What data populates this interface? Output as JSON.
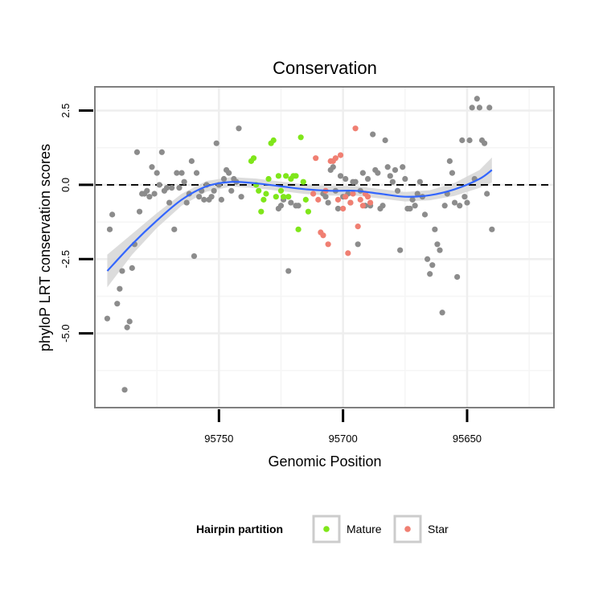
{
  "chart_data": {
    "type": "scatter",
    "title": "Conservation",
    "xlabel": "Genomic Position",
    "ylabel": "phyloP LRT conservation scores",
    "x_reversed": true,
    "xlim": [
      95800,
      95615
    ],
    "ylim": [
      -7.5,
      3.3
    ],
    "x_ticks": [
      95750,
      95700,
      95650
    ],
    "x_tick_labels": [
      "95750",
      "95700",
      "95650"
    ],
    "y_ticks": [
      2.5,
      0,
      -2.5,
      -5
    ],
    "y_tick_labels": [
      "2.5",
      "0.0",
      "-2.5",
      "-5.0"
    ],
    "grid": true,
    "reference_line": {
      "y": 0,
      "style": "dashed"
    },
    "legend": {
      "title": "Hairpin partition",
      "position": "bottom",
      "entries": [
        {
          "name": "Mature",
          "color": "#7fe61a"
        },
        {
          "name": "Star",
          "color": "#f07f72"
        }
      ]
    },
    "colors": {
      "other": "#8c8c8c",
      "smooth": "#3366ff",
      "band": "#d6d6d6"
    },
    "series": [
      {
        "group": "other",
        "points": [
          [
            95795,
            -4.5
          ],
          [
            95794,
            -1.5
          ],
          [
            95793,
            -1
          ],
          [
            95791,
            -4
          ],
          [
            95790,
            -3.5
          ],
          [
            95789,
            -2.9
          ],
          [
            95788,
            -6.9
          ],
          [
            95787,
            -4.8
          ],
          [
            95786,
            -4.6
          ],
          [
            95785,
            -2.8
          ],
          [
            95784,
            -2
          ],
          [
            95783,
            1.1
          ],
          [
            95782,
            -0.9
          ],
          [
            95781,
            -0.3
          ],
          [
            95780,
            -0.3
          ],
          [
            95779,
            -0.2
          ],
          [
            95778,
            -0.4
          ],
          [
            95777,
            0.6
          ],
          [
            95776,
            -0.3
          ],
          [
            95775,
            0.4
          ],
          [
            95774,
            0
          ],
          [
            95773,
            1.1
          ],
          [
            95772,
            -0.2
          ],
          [
            95771,
            -0.1
          ],
          [
            95770,
            -0.6
          ],
          [
            95769,
            -0.1
          ],
          [
            95768,
            -1.5
          ],
          [
            95767,
            0.4
          ],
          [
            95766,
            -0.1
          ],
          [
            95765,
            0.4
          ],
          [
            95764,
            0.1
          ],
          [
            95763,
            -0.6
          ],
          [
            95762,
            -0.3
          ],
          [
            95761,
            0.8
          ],
          [
            95760,
            -2.4
          ],
          [
            95759,
            0.4
          ],
          [
            95758,
            -0.4
          ],
          [
            95757,
            -0.2
          ],
          [
            95756,
            -0.5
          ],
          [
            95755,
            0
          ],
          [
            95754,
            -0.5
          ],
          [
            95753,
            -0.4
          ],
          [
            95752,
            -0.2
          ],
          [
            95751,
            1.4
          ],
          [
            95750,
            0
          ],
          [
            95749,
            -0.5
          ],
          [
            95748,
            0.2
          ],
          [
            95747,
            0.5
          ],
          [
            95746,
            0.4
          ],
          [
            95745,
            -0.2
          ],
          [
            95744,
            0.2
          ],
          [
            95743,
            0.1
          ],
          [
            95742,
            1.9
          ],
          [
            95741,
            -0.4
          ],
          [
            95726,
            -0.8
          ],
          [
            95725,
            -0.7
          ],
          [
            95724,
            -0.5
          ],
          [
            95722,
            -2.9
          ],
          [
            95721,
            -0.6
          ],
          [
            95719,
            -0.7
          ],
          [
            95718,
            -0.7
          ],
          [
            95708,
            -0.3
          ],
          [
            95707,
            -0.4
          ],
          [
            95706,
            -0.6
          ],
          [
            95705,
            0.5
          ],
          [
            95704,
            0.6
          ],
          [
            95703,
            -0.2
          ],
          [
            95702,
            -0.8
          ],
          [
            95701,
            0.3
          ],
          [
            95700,
            -0.4
          ],
          [
            95699,
            0.2
          ],
          [
            95698,
            -0.3
          ],
          [
            95697,
            -0.6
          ],
          [
            95696,
            0.1
          ],
          [
            95695,
            0.1
          ],
          [
            95694,
            -2
          ],
          [
            95693,
            -0.2
          ],
          [
            95692,
            0.4
          ],
          [
            95691,
            -0.7
          ],
          [
            95690,
            0.2
          ],
          [
            95689,
            -0.7
          ],
          [
            95688,
            1.7
          ],
          [
            95687,
            0.5
          ],
          [
            95686,
            0.4
          ],
          [
            95685,
            -0.8
          ],
          [
            95684,
            -0.7
          ],
          [
            95683,
            1.5
          ],
          [
            95682,
            0.6
          ],
          [
            95681,
            0.3
          ],
          [
            95680,
            0.1
          ],
          [
            95679,
            0.5
          ],
          [
            95678,
            -0.2
          ],
          [
            95677,
            -2.2
          ],
          [
            95676,
            0.6
          ],
          [
            95675,
            0.2
          ],
          [
            95674,
            -0.8
          ],
          [
            95673,
            -0.8
          ],
          [
            95672,
            -0.5
          ],
          [
            95671,
            -0.7
          ],
          [
            95670,
            -0.3
          ],
          [
            95669,
            0.1
          ],
          [
            95668,
            -0.4
          ],
          [
            95667,
            -1
          ],
          [
            95666,
            -2.5
          ],
          [
            95665,
            -3
          ],
          [
            95664,
            -2.7
          ],
          [
            95663,
            -1.5
          ],
          [
            95662,
            -2
          ],
          [
            95661,
            -2.2
          ],
          [
            95660,
            -4.3
          ],
          [
            95659,
            -0.7
          ],
          [
            95658,
            -0.3
          ],
          [
            95657,
            0.8
          ],
          [
            95656,
            0.4
          ],
          [
            95655,
            -0.6
          ],
          [
            95654,
            -3.1
          ],
          [
            95653,
            -0.7
          ],
          [
            95652,
            1.5
          ],
          [
            95651,
            -0.4
          ],
          [
            95650,
            -0.6
          ],
          [
            95649,
            1.5
          ],
          [
            95648,
            2.6
          ],
          [
            95647,
            0.2
          ],
          [
            95646,
            2.9
          ],
          [
            95645,
            2.6
          ],
          [
            95644,
            1.5
          ],
          [
            95643,
            1.4
          ],
          [
            95642,
            -0.3
          ],
          [
            95641,
            2.6
          ],
          [
            95640,
            -1.5
          ]
        ]
      },
      {
        "group": "Mature",
        "points": [
          [
            95737,
            0.8
          ],
          [
            95736,
            0.9
          ],
          [
            95735,
            0
          ],
          [
            95734,
            -0.2
          ],
          [
            95733,
            -0.9
          ],
          [
            95732,
            -0.5
          ],
          [
            95731,
            -0.3
          ],
          [
            95730,
            0.2
          ],
          [
            95729,
            1.4
          ],
          [
            95728,
            1.5
          ],
          [
            95727,
            -0.4
          ],
          [
            95726,
            0.3
          ],
          [
            95725,
            -0.2
          ],
          [
            95724,
            -0.4
          ],
          [
            95723,
            0.3
          ],
          [
            95722,
            -0.4
          ],
          [
            95721,
            0.2
          ],
          [
            95720,
            0.3
          ],
          [
            95719,
            0.3
          ],
          [
            95718,
            -1.5
          ],
          [
            95717,
            1.6
          ],
          [
            95716,
            0.1
          ],
          [
            95715,
            -0.5
          ],
          [
            95714,
            -0.9
          ]
        ]
      },
      {
        "group": "Star",
        "points": [
          [
            95712,
            -0.3
          ],
          [
            95711,
            0.9
          ],
          [
            95710,
            -0.5
          ],
          [
            95709,
            -1.6
          ],
          [
            95708,
            -1.7
          ],
          [
            95707,
            -0.2
          ],
          [
            95706,
            -2
          ],
          [
            95705,
            0.8
          ],
          [
            95704,
            0.8
          ],
          [
            95703,
            0.9
          ],
          [
            95702,
            -0.5
          ],
          [
            95701,
            1
          ],
          [
            95700,
            -0.8
          ],
          [
            95699,
            -0.4
          ],
          [
            95698,
            -2.3
          ],
          [
            95697,
            -0.6
          ],
          [
            95696,
            -0.3
          ],
          [
            95695,
            1.9
          ],
          [
            95694,
            -1.4
          ],
          [
            95693,
            -0.5
          ],
          [
            95692,
            -0.7
          ],
          [
            95691,
            -0.3
          ],
          [
            95690,
            -0.4
          ],
          [
            95689,
            -0.6
          ]
        ]
      }
    ],
    "smooth_curve": {
      "x": [
        95795,
        95785,
        95775,
        95765,
        95755,
        95745,
        95735,
        95725,
        95715,
        95705,
        95695,
        95685,
        95675,
        95665,
        95655,
        95645,
        95640
      ],
      "y": [
        -2.9,
        -2,
        -1.2,
        -0.5,
        -0.05,
        0.1,
        0.05,
        -0.05,
        -0.15,
        -0.2,
        -0.2,
        -0.3,
        -0.4,
        -0.35,
        -0.15,
        0.2,
        0.5
      ],
      "se": [
        0.55,
        0.35,
        0.25,
        0.2,
        0.18,
        0.16,
        0.16,
        0.16,
        0.16,
        0.16,
        0.16,
        0.16,
        0.16,
        0.17,
        0.22,
        0.3,
        0.42
      ]
    }
  }
}
